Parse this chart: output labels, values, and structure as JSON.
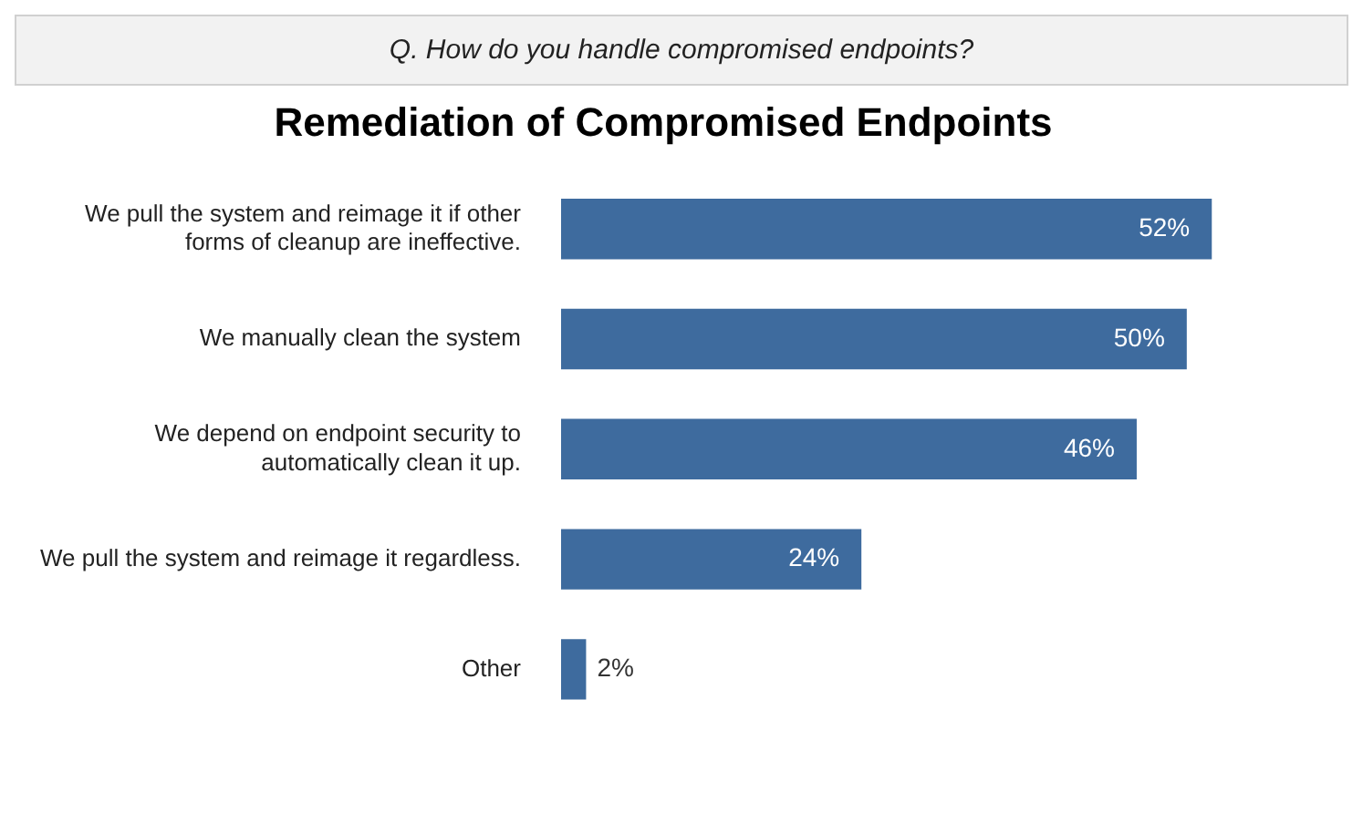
{
  "chart_data": {
    "type": "bar",
    "orientation": "horizontal",
    "title": "Remediation of Compromised Endpoints",
    "annotations": [
      "Q. How do you handle compromised endpoints?"
    ],
    "categories": [
      "We pull the system and reimage it if other forms of cleanup are ineffective.",
      "We manually clean the system",
      "We depend on endpoint security to automatically clean it up.",
      "We pull the system and reimage it regardless.",
      "Other"
    ],
    "values": [
      52,
      50,
      46,
      24,
      2
    ],
    "color": "#3e6b9e",
    "data_labels": true,
    "value_labels": [
      "52%",
      "50%",
      "46%",
      "24%",
      "2%"
    ],
    "grid": false,
    "legend": false
  }
}
